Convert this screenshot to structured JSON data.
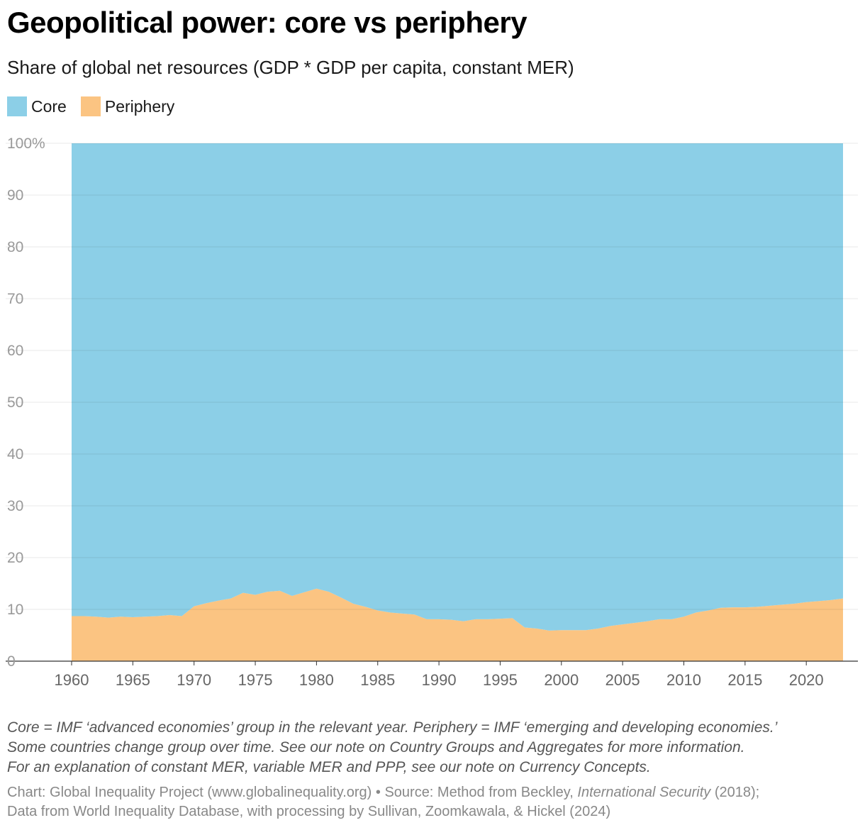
{
  "title": "Geopolitical power: core vs periphery",
  "subtitle": "Share of global net resources (GDP * GDP per capita, constant MER)",
  "legend": [
    {
      "label": "Core",
      "color": "#8ccfe7"
    },
    {
      "label": "Periphery",
      "color": "#fbc482"
    }
  ],
  "chart_data": {
    "type": "area",
    "stacked": true,
    "x": [
      1960,
      1961,
      1962,
      1963,
      1964,
      1965,
      1966,
      1967,
      1968,
      1969,
      1970,
      1971,
      1972,
      1973,
      1974,
      1975,
      1976,
      1977,
      1978,
      1979,
      1980,
      1981,
      1982,
      1983,
      1984,
      1985,
      1986,
      1987,
      1988,
      1989,
      1990,
      1991,
      1992,
      1993,
      1994,
      1995,
      1996,
      1997,
      1998,
      1999,
      2000,
      2001,
      2002,
      2003,
      2004,
      2005,
      2006,
      2007,
      2008,
      2009,
      2010,
      2011,
      2012,
      2013,
      2014,
      2015,
      2016,
      2017,
      2018,
      2019,
      2020,
      2021,
      2022,
      2023
    ],
    "series": [
      {
        "name": "Periphery",
        "color": "#fbc482",
        "values": [
          8.7,
          8.7,
          8.6,
          8.4,
          8.6,
          8.5,
          8.6,
          8.7,
          8.9,
          8.7,
          10.6,
          11.2,
          11.7,
          12.1,
          13.2,
          12.8,
          13.4,
          13.6,
          12.6,
          13.3,
          14.0,
          13.4,
          12.3,
          11.1,
          10.5,
          9.8,
          9.4,
          9.2,
          9.0,
          8.1,
          8.1,
          8.0,
          7.7,
          8.1,
          8.1,
          8.2,
          8.3,
          6.5,
          6.3,
          5.9,
          6.0,
          6.0,
          6.0,
          6.3,
          6.8,
          7.1,
          7.4,
          7.7,
          8.1,
          8.1,
          8.6,
          9.4,
          9.8,
          10.3,
          10.4,
          10.4,
          10.5,
          10.7,
          10.9,
          11.1,
          11.4,
          11.6,
          11.8,
          12.1
        ]
      },
      {
        "name": "Core",
        "color": "#8ccfe7",
        "values": [
          91.3,
          91.3,
          91.4,
          91.6,
          91.4,
          91.5,
          91.4,
          91.3,
          91.1,
          91.3,
          89.4,
          88.8,
          88.3,
          87.9,
          86.8,
          87.2,
          86.6,
          86.4,
          87.4,
          86.7,
          86.0,
          86.6,
          87.7,
          88.9,
          89.5,
          90.2,
          90.6,
          90.8,
          91.0,
          91.9,
          91.9,
          92.0,
          92.3,
          91.9,
          91.9,
          91.8,
          91.7,
          93.5,
          93.7,
          94.1,
          94.0,
          94.0,
          94.0,
          93.7,
          93.2,
          92.9,
          92.6,
          92.3,
          91.9,
          91.9,
          91.4,
          90.6,
          90.2,
          89.7,
          89.6,
          89.6,
          89.5,
          89.3,
          89.1,
          88.9,
          88.6,
          88.4,
          88.2,
          87.9
        ]
      }
    ],
    "ylim": [
      0,
      100
    ],
    "yticks": [
      0,
      10,
      20,
      30,
      40,
      50,
      60,
      70,
      80,
      90,
      100
    ],
    "ytick_labels": [
      "0",
      "10",
      "20",
      "30",
      "40",
      "50",
      "60",
      "70",
      "80",
      "90",
      "100%"
    ],
    "xticks": [
      1960,
      1965,
      1970,
      1975,
      1980,
      1985,
      1990,
      1995,
      2000,
      2005,
      2010,
      2015,
      2020
    ],
    "xtick_labels": [
      "1960",
      "1965",
      "1970",
      "1975",
      "1980",
      "1985",
      "1990",
      "1995",
      "2000",
      "2005",
      "2010",
      "2015",
      "2020"
    ],
    "xlabel": "",
    "ylabel": "",
    "grid": true,
    "legend_position": "top-left"
  },
  "notes": {
    "line1": "Core = IMF ‘advanced economies’ group in the relevant year. Periphery = IMF ‘emerging and developing economies.’",
    "line2": "Some countries change group over time. See our note on Country Groups and Aggregates for more information.",
    "line3": "For an explanation of constant MER, variable MER and PPP, see our note on Currency Concepts."
  },
  "source": {
    "part1": "Chart: Global Inequality Project (www.globalinequality.org) • Source: Method from Beckley, ",
    "journal": "International Security",
    "part2": " (2018);",
    "line2": "Data from World Inequality Database, with processing by Sullivan, Zoomkawala, & Hickel (2024)"
  }
}
